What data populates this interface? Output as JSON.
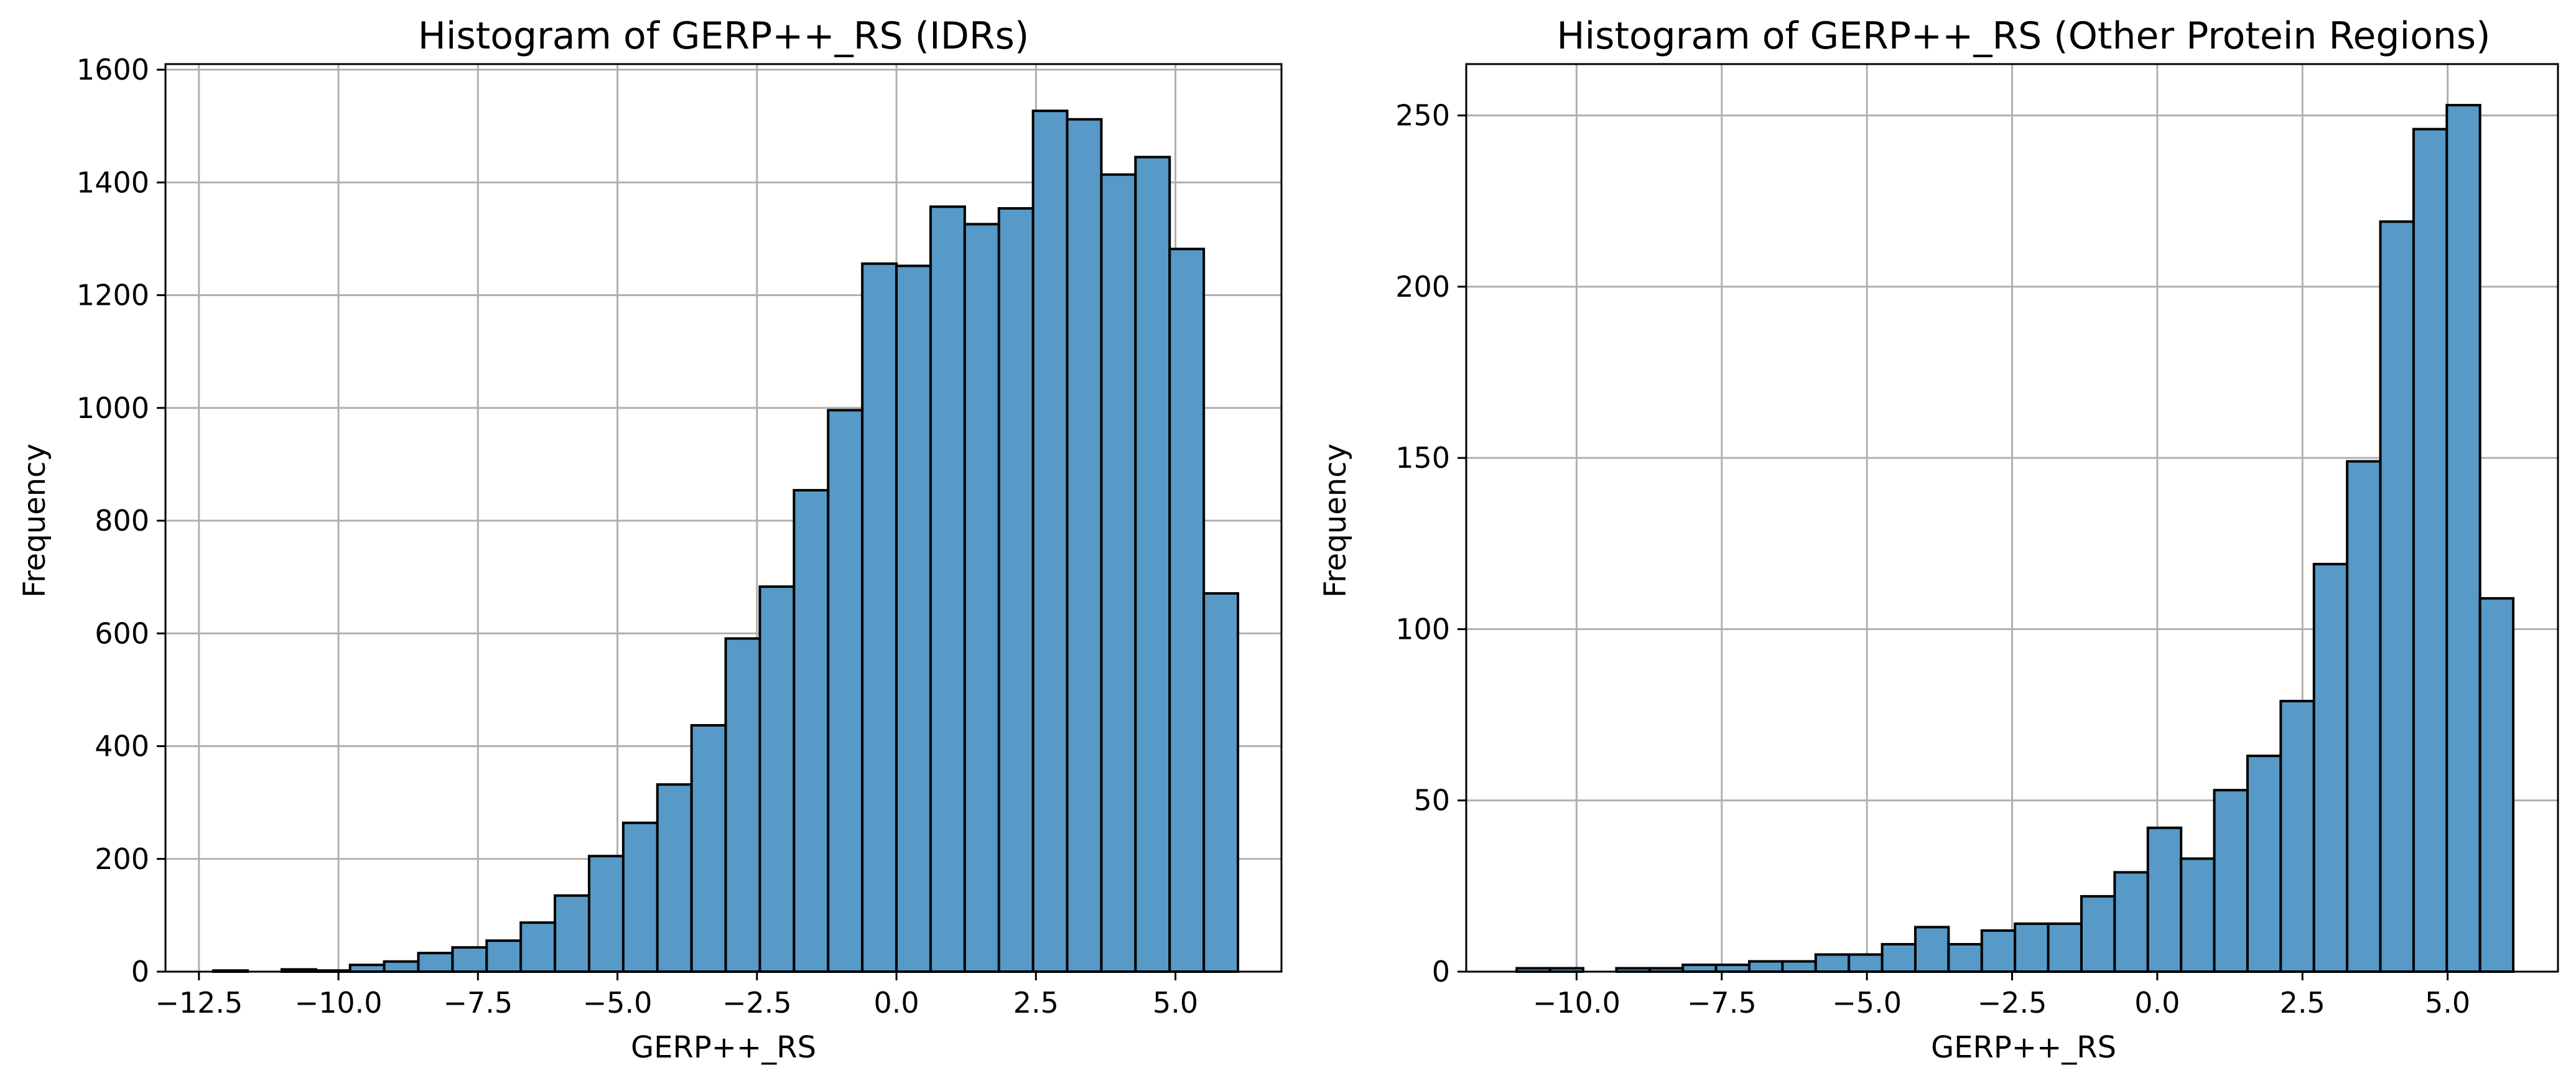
{
  "figure": {
    "bar_color": "#5799c7",
    "edge_color": "#000000",
    "grid_color": "#b0b0b0"
  },
  "chart_data": [
    {
      "type": "bar",
      "subtype": "histogram",
      "title": "Histogram of GERP++_RS (IDRs)",
      "xlabel": "GERP++_RS",
      "ylabel": "Frequency",
      "xlim": [
        -13.1,
        6.9
      ],
      "ylim": [
        0,
        1610
      ],
      "xticks": [
        -12.5,
        -10.0,
        -7.5,
        -5.0,
        -2.5,
        0.0,
        2.5,
        5.0
      ],
      "xtick_labels": [
        "−12.5",
        "−10.0",
        "−7.5",
        "−5.0",
        "−2.5",
        "0.0",
        "2.5",
        "5.0"
      ],
      "yticks": [
        0,
        200,
        400,
        600,
        800,
        1000,
        1200,
        1400,
        1600
      ],
      "ytick_labels": [
        "0",
        "200",
        "400",
        "600",
        "800",
        "1000",
        "1200",
        "1400",
        "1600"
      ],
      "grid": true,
      "bin_start": -12.24,
      "bin_width": 0.612,
      "values": [
        2,
        0,
        4,
        2,
        12,
        18,
        33,
        43,
        55,
        87,
        135,
        205,
        264,
        332,
        437,
        591,
        683,
        854,
        996,
        1256,
        1252,
        1357,
        1326,
        1354,
        1527,
        1512,
        1414,
        1445,
        1282,
        671
      ]
    },
    {
      "type": "bar",
      "subtype": "histogram",
      "title": "Histogram of GERP++_RS (Other Protein Regions)",
      "xlabel": "GERP++_RS",
      "ylabel": "Frequency",
      "xlim": [
        -11.9,
        6.9
      ],
      "ylim": [
        0,
        265
      ],
      "xticks": [
        -10.0,
        -7.5,
        -5.0,
        -2.5,
        0.0,
        2.5,
        5.0
      ],
      "xtick_labels": [
        "−10.0",
        "−7.5",
        "−5.0",
        "−2.5",
        "0.0",
        "2.5",
        "5.0"
      ],
      "yticks": [
        0,
        50,
        100,
        150,
        200,
        250
      ],
      "ytick_labels": [
        "0",
        "50",
        "100",
        "150",
        "200",
        "250"
      ],
      "grid": true,
      "bin_start": -11.03,
      "bin_width": 0.572,
      "values": [
        1,
        1,
        0,
        1,
        1,
        2,
        2,
        3,
        3,
        5,
        5,
        8,
        13,
        8,
        12,
        14,
        14,
        22,
        29,
        42,
        33,
        53,
        63,
        79,
        119,
        149,
        219,
        246,
        253,
        109
      ]
    }
  ]
}
